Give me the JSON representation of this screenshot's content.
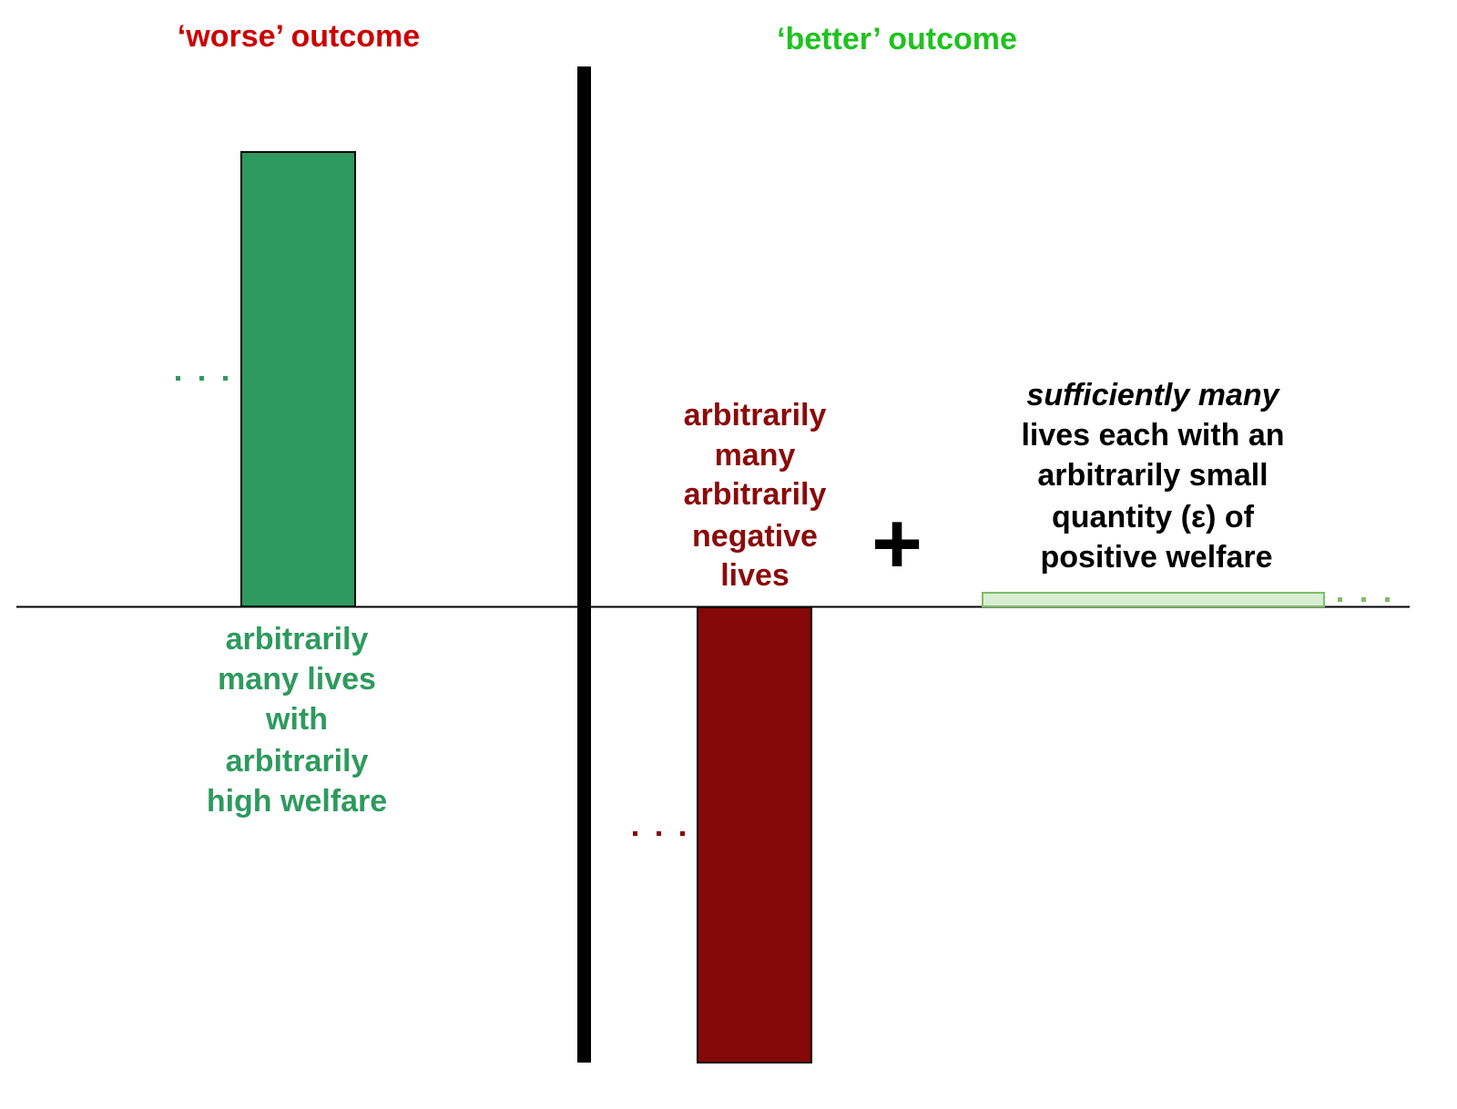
{
  "header": {
    "worse": "‘worse’ outcome",
    "better": "‘better’ outcome"
  },
  "left_label": {
    "lines": [
      "arbitrarily",
      "many lives",
      "with",
      "arbitrarily",
      "high welfare"
    ]
  },
  "middle_label": {
    "lines": [
      "arbitrarily",
      "many",
      "arbitrarily",
      "negative",
      "lives"
    ]
  },
  "plus": "+",
  "right_label": {
    "emphasis": "sufficiently many",
    "lines": [
      "lives each with an",
      "arbitrarily small",
      "quantity (ε) of",
      "positive welfare"
    ]
  }
}
